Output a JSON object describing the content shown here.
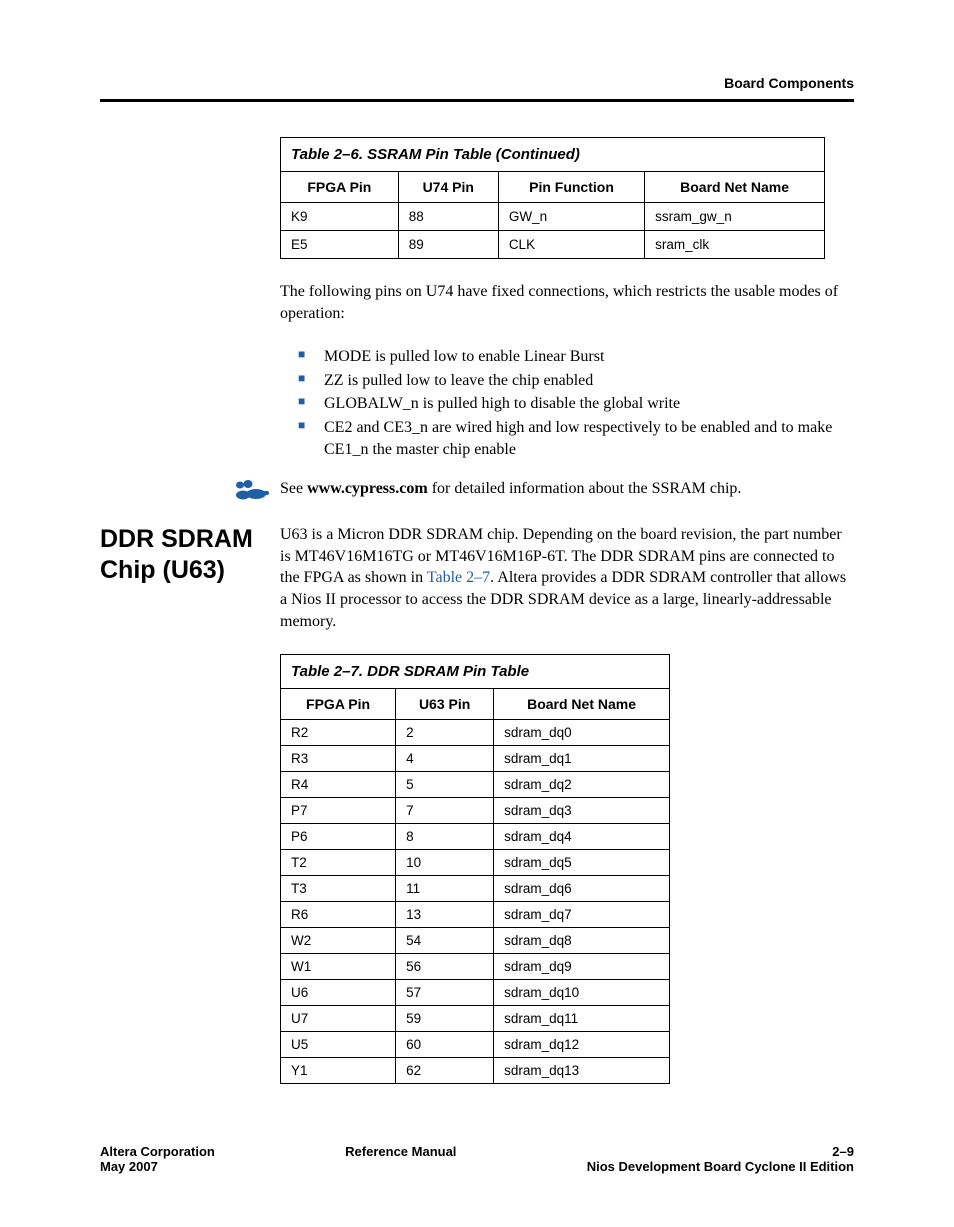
{
  "header": {
    "section_label": "Board Components"
  },
  "ssram_table": {
    "caption": "Table 2–6. SSRAM Pin Table (Continued)",
    "columns": [
      "FPGA Pin",
      "U74 Pin",
      "Pin Function",
      "Board Net Name"
    ],
    "rows": [
      [
        "K9",
        "88",
        "GW_n",
        "ssram_gw_n"
      ],
      [
        "E5",
        "89",
        "CLK",
        "sram_clk"
      ]
    ]
  },
  "paragraph1": "The following pins on U74 have fixed connections, which restricts the usable modes of operation:",
  "bullets": [
    "MODE is pulled low to enable Linear Burst",
    "ZZ is pulled low to leave the chip enabled",
    "GLOBALW_n is pulled high to disable the global write",
    "CE2 and CE3_n are wired high and low respectively to be enabled and to make CE1_n the master chip enable"
  ],
  "see_prefix": "See ",
  "see_link": "www.cypress.com",
  "see_suffix": " for detailed information about the SSRAM chip.",
  "section_heading": "DDR SDRAM Chip (U63)",
  "ddr_para_pre": "U63 is a Micron DDR SDRAM chip. Depending on the board revision, the part number is MT46V16M16TG or MT46V16M16P-6T. The DDR SDRAM pins are connected to the FPGA as shown in ",
  "ddr_table_ref": "Table 2–7",
  "ddr_para_post": ". Altera provides a DDR SDRAM controller that allows a Nios II processor to access the DDR SDRAM device as a large, linearly-addressable memory.",
  "ddr_table": {
    "caption": "Table 2–7. DDR SDRAM Pin Table",
    "columns": [
      "FPGA Pin",
      "U63 Pin",
      "Board Net Name"
    ],
    "rows": [
      [
        "R2",
        "2",
        "sdram_dq0"
      ],
      [
        "R3",
        "4",
        "sdram_dq1"
      ],
      [
        "R4",
        "5",
        "sdram_dq2"
      ],
      [
        "P7",
        "7",
        "sdram_dq3"
      ],
      [
        "P6",
        "8",
        "sdram_dq4"
      ],
      [
        "T2",
        "10",
        "sdram_dq5"
      ],
      [
        "T3",
        "11",
        "sdram_dq6"
      ],
      [
        "R6",
        "13",
        "sdram_dq7"
      ],
      [
        "W2",
        "54",
        "sdram_dq8"
      ],
      [
        "W1",
        "56",
        "sdram_dq9"
      ],
      [
        "U6",
        "57",
        "sdram_dq10"
      ],
      [
        "U7",
        "59",
        "sdram_dq11"
      ],
      [
        "U5",
        "60",
        "sdram_dq12"
      ],
      [
        "Y1",
        "62",
        "sdram_dq13"
      ]
    ]
  },
  "footer": {
    "left_line1": "Altera Corporation",
    "left_line2": "May 2007",
    "center": "Reference Manual",
    "right_line1": "2–9",
    "right_line2": "Nios Development Board Cyclone II Edition"
  },
  "colors": {
    "link": "#1f5fa8",
    "bullet": "#1f5fa8",
    "rule": "#000000"
  }
}
